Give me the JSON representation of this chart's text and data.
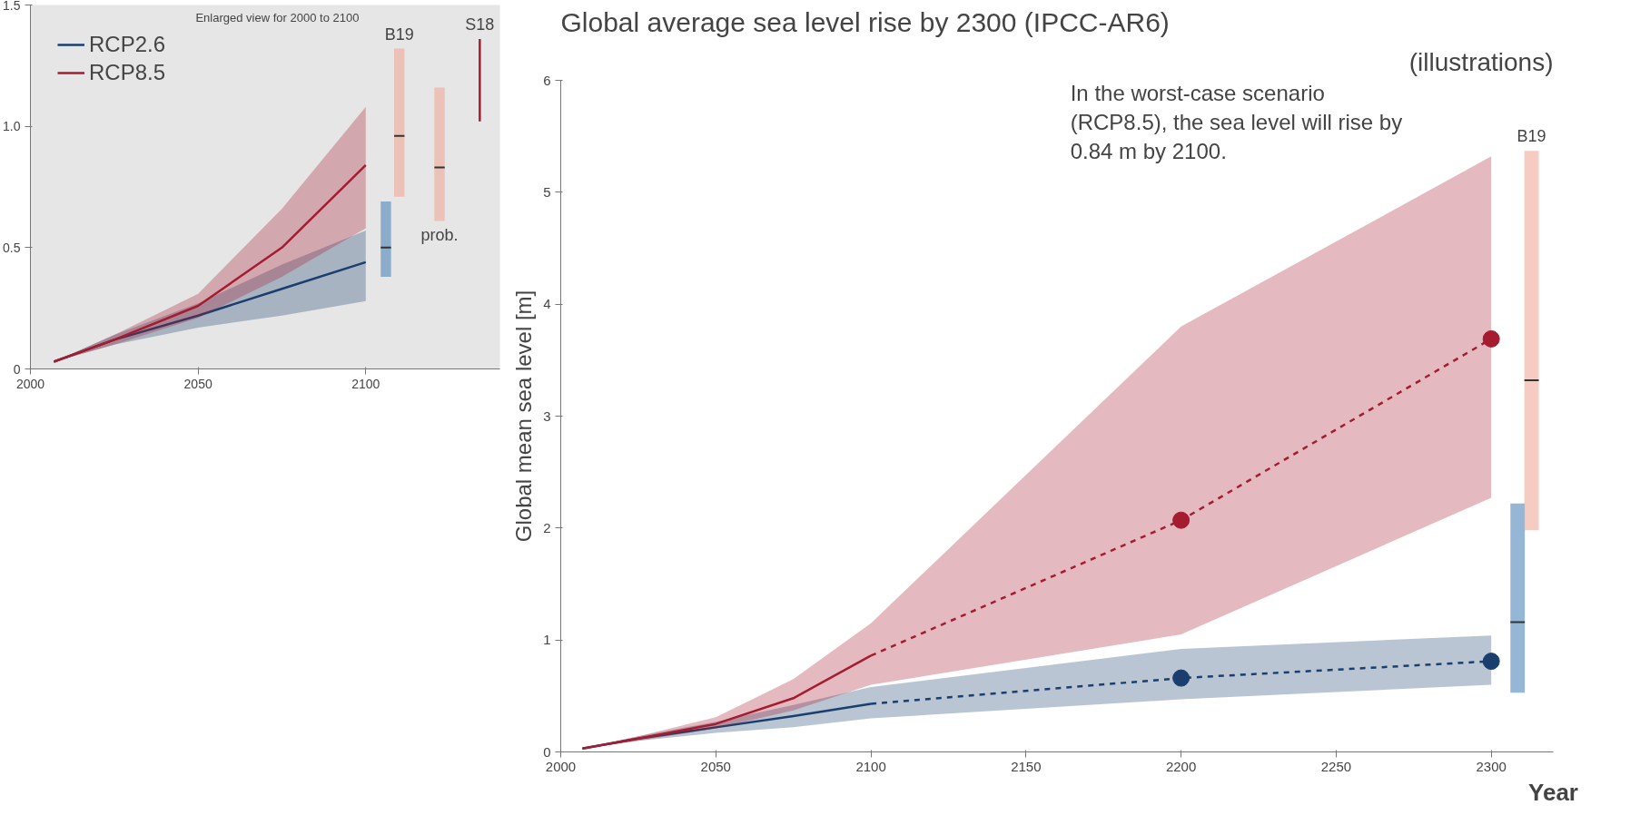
{
  "chart_data": [
    {
      "type": "line",
      "title": "Global average sea level rise by 2300 (IPCC-AR6)",
      "subtitle": "(illustrations)",
      "xlabel": "Year",
      "ylabel": "Global mean sea level [m]",
      "xlim": [
        2000,
        2320
      ],
      "ylim": [
        0,
        6
      ],
      "xticks": [
        2000,
        2050,
        2100,
        2150,
        2200,
        2250,
        2300
      ],
      "yticks": [
        0,
        1,
        2,
        3,
        4,
        5,
        6
      ],
      "series": [
        {
          "color": "#1a3f6e",
          "x": [
            2007,
            2025,
            2050,
            2075,
            2100
          ],
          "values": [
            0.03,
            0.12,
            0.22,
            0.32,
            0.43
          ],
          "lower": [
            0.03,
            0.1,
            0.17,
            0.22,
            0.3
          ],
          "upper": [
            0.03,
            0.14,
            0.27,
            0.42,
            0.58
          ]
        },
        {
          "color": "#a51c30",
          "x": [
            2007,
            2025,
            2050,
            2075,
            2100
          ],
          "values": [
            0.03,
            0.12,
            0.25,
            0.48,
            0.86
          ],
          "lower": [
            0.03,
            0.1,
            0.21,
            0.37,
            0.6
          ],
          "upper": [
            0.03,
            0.14,
            0.31,
            0.65,
            1.15
          ]
        },
        {
          "color": "#1a3f6e",
          "line_style": "dashed",
          "x": [
            2100,
            2200,
            2300
          ],
          "values": [
            0.43,
            0.66,
            0.81
          ],
          "lower": [
            0.3,
            0.47,
            0.6
          ],
          "upper": [
            0.58,
            0.92,
            1.04
          ]
        },
        {
          "color": "#a51c30",
          "line_style": "dashed",
          "x": [
            2100,
            2200,
            2300
          ],
          "values": [
            0.86,
            2.07,
            3.69
          ],
          "lower": [
            0.6,
            1.05,
            2.27
          ],
          "upper": [
            1.15,
            3.8,
            5.32
          ]
        },
        {
          "type": "scatter",
          "marker": "circle",
          "color": "#1a3f6e",
          "x": [
            2200,
            2300
          ],
          "values": [
            0.66,
            0.81
          ]
        },
        {
          "type": "scatter",
          "marker": "circle",
          "color": "#a51c30",
          "x": [
            2200,
            2300
          ],
          "values": [
            2.07,
            3.69
          ]
        },
        {
          "type": "box",
          "color": "#4f86b8",
          "x": [
            2308.5
          ],
          "boxes": [
            {
              "low": 0.53,
              "q1": 0.53,
              "median": 1.16,
              "q3": 2.22,
              "high": 2.22
            }
          ]
        },
        {
          "type": "box",
          "name": "B19",
          "color": "#f0a898",
          "x": [
            2313
          ],
          "boxes": [
            {
              "low": 1.98,
              "q1": 1.98,
              "median": 3.32,
              "q3": 5.37,
              "high": 5.37
            }
          ]
        }
      ],
      "annotations": [
        "In the worst-case scenario\n(RCP8.5), the sea level will rise by\n0.84 m by 2100."
      ]
    },
    {
      "type": "line",
      "xlim": [
        2000,
        2140
      ],
      "ylim": [
        0,
        1.5
      ],
      "xticks": [
        2000,
        2050,
        2100
      ],
      "yticks": [
        0,
        {
          "value": 0.5,
          "label": "0.5"
        },
        {
          "value": 1,
          "label": "1.0"
        },
        {
          "value": 1.5,
          "label": "1.5"
        }
      ],
      "legend": "top left",
      "series": [
        {
          "name": "RCP2.6",
          "color": "#1a3f6e",
          "x": [
            2007,
            2025,
            2050,
            2075,
            2100
          ],
          "values": [
            0.03,
            0.12,
            0.22,
            0.33,
            0.44
          ],
          "lower": [
            0.03,
            0.1,
            0.17,
            0.22,
            0.28
          ],
          "upper": [
            0.03,
            0.14,
            0.27,
            0.43,
            0.57
          ]
        },
        {
          "name": "RCP8.5",
          "color": "#a51c30",
          "x": [
            2007,
            2025,
            2050,
            2075,
            2100
          ],
          "values": [
            0.03,
            0.12,
            0.26,
            0.5,
            0.84
          ],
          "lower": [
            0.03,
            0.1,
            0.21,
            0.38,
            0.58
          ],
          "upper": [
            0.03,
            0.14,
            0.31,
            0.66,
            1.08
          ]
        },
        {
          "type": "box",
          "color": "#4f86b8",
          "x": [
            2106
          ],
          "boxes": [
            {
              "low": 0.38,
              "q1": 0.38,
              "median": 0.5,
              "q3": 0.69,
              "high": 0.69
            }
          ]
        },
        {
          "type": "box",
          "name": "B19",
          "color": "#f0a898",
          "x": [
            2110
          ],
          "boxes": [
            {
              "low": 0.71,
              "q1": 0.71,
              "median": 0.96,
              "q3": 1.32,
              "high": 1.32
            }
          ]
        },
        {
          "type": "box",
          "name": "prob.",
          "color": "#f0a898",
          "x": [
            2122
          ],
          "boxes": [
            {
              "low": 0.61,
              "q1": 0.61,
              "median": 0.83,
              "q3": 1.16,
              "high": 1.16
            }
          ]
        },
        {
          "name": "S18",
          "color": "#a51c30",
          "x": [
            2134,
            2134
          ],
          "values": [
            1.36,
            1.02
          ]
        }
      ],
      "annotations": [
        "Enlarged view for 2000 to 2100"
      ]
    }
  ]
}
